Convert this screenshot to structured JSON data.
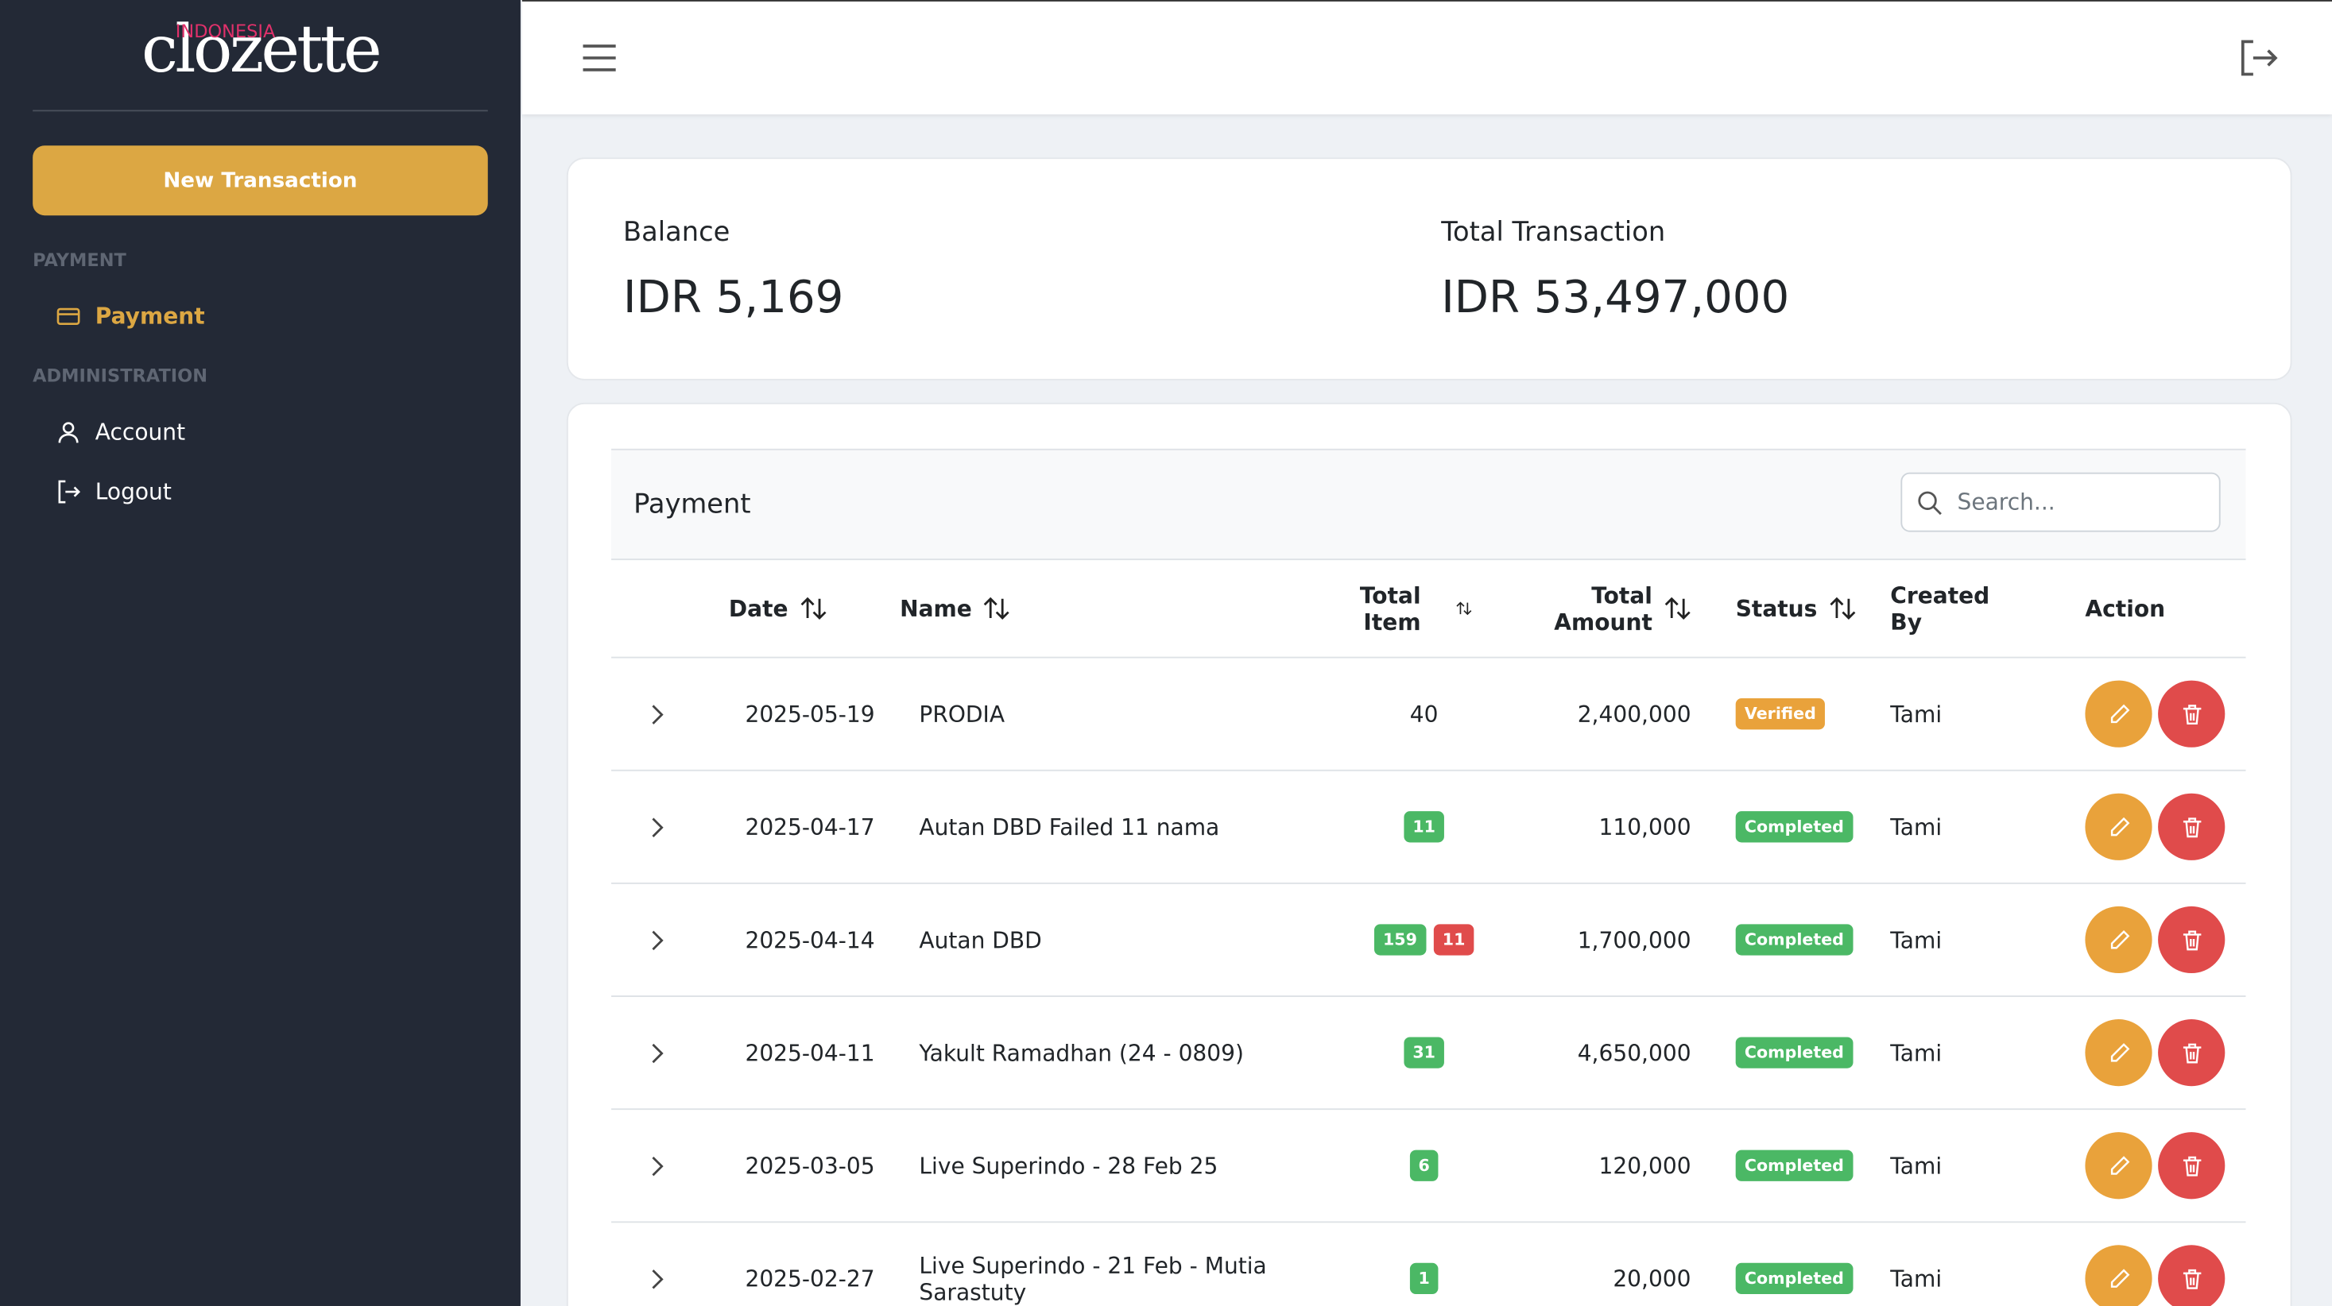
{
  "sidebar": {
    "logo": "clozette",
    "logo_sub": "INDONESIA",
    "new_button": "New Transaction",
    "sections": [
      {
        "title": "PAYMENT",
        "items": [
          "Payment"
        ]
      },
      {
        "title": "ADMINISTRATION",
        "items": [
          "Account",
          "Logout"
        ]
      }
    ]
  },
  "summary": [
    {
      "label": "Balance",
      "value": "IDR 5,169"
    },
    {
      "label": "Total Transaction",
      "value": "IDR 53,497,000"
    }
  ],
  "table": {
    "title": "Payment",
    "search_placeholder": "Search...",
    "headers": [
      "Date",
      "Name",
      "Total Item",
      "Total Amount",
      "Status",
      "Created By",
      "Action"
    ],
    "rows": [
      {
        "date": "2025-05-19",
        "name": "PRODIA",
        "items": [
          {
            "value": "40",
            "tone": "plain"
          }
        ],
        "amount": "2,400,000",
        "status": "Verified",
        "status_tone": "warning",
        "created_by": "Tami"
      },
      {
        "date": "2025-04-17",
        "name": "Autan DBD Failed 11 nama",
        "items": [
          {
            "value": "11",
            "tone": "success"
          }
        ],
        "amount": "110,000",
        "status": "Completed",
        "status_tone": "success",
        "created_by": "Tami"
      },
      {
        "date": "2025-04-14",
        "name": "Autan DBD",
        "items": [
          {
            "value": "159",
            "tone": "success"
          },
          {
            "value": "11",
            "tone": "danger"
          }
        ],
        "amount": "1,700,000",
        "status": "Completed",
        "status_tone": "success",
        "created_by": "Tami"
      },
      {
        "date": "2025-04-11",
        "name": "Yakult Ramadhan (24 - 0809)",
        "items": [
          {
            "value": "31",
            "tone": "success"
          }
        ],
        "amount": "4,650,000",
        "status": "Completed",
        "status_tone": "success",
        "created_by": "Tami"
      },
      {
        "date": "2025-03-05",
        "name": "Live Superindo - 28 Feb 25",
        "items": [
          {
            "value": "6",
            "tone": "success"
          }
        ],
        "amount": "120,000",
        "status": "Completed",
        "status_tone": "success",
        "created_by": "Tami"
      },
      {
        "date": "2025-02-27",
        "name": "Live Superindo - 21 Feb - Mutia Sarastuty",
        "items": [
          {
            "value": "1",
            "tone": "success"
          }
        ],
        "amount": "20,000",
        "status": "Completed",
        "status_tone": "success",
        "created_by": "Tami"
      }
    ]
  }
}
